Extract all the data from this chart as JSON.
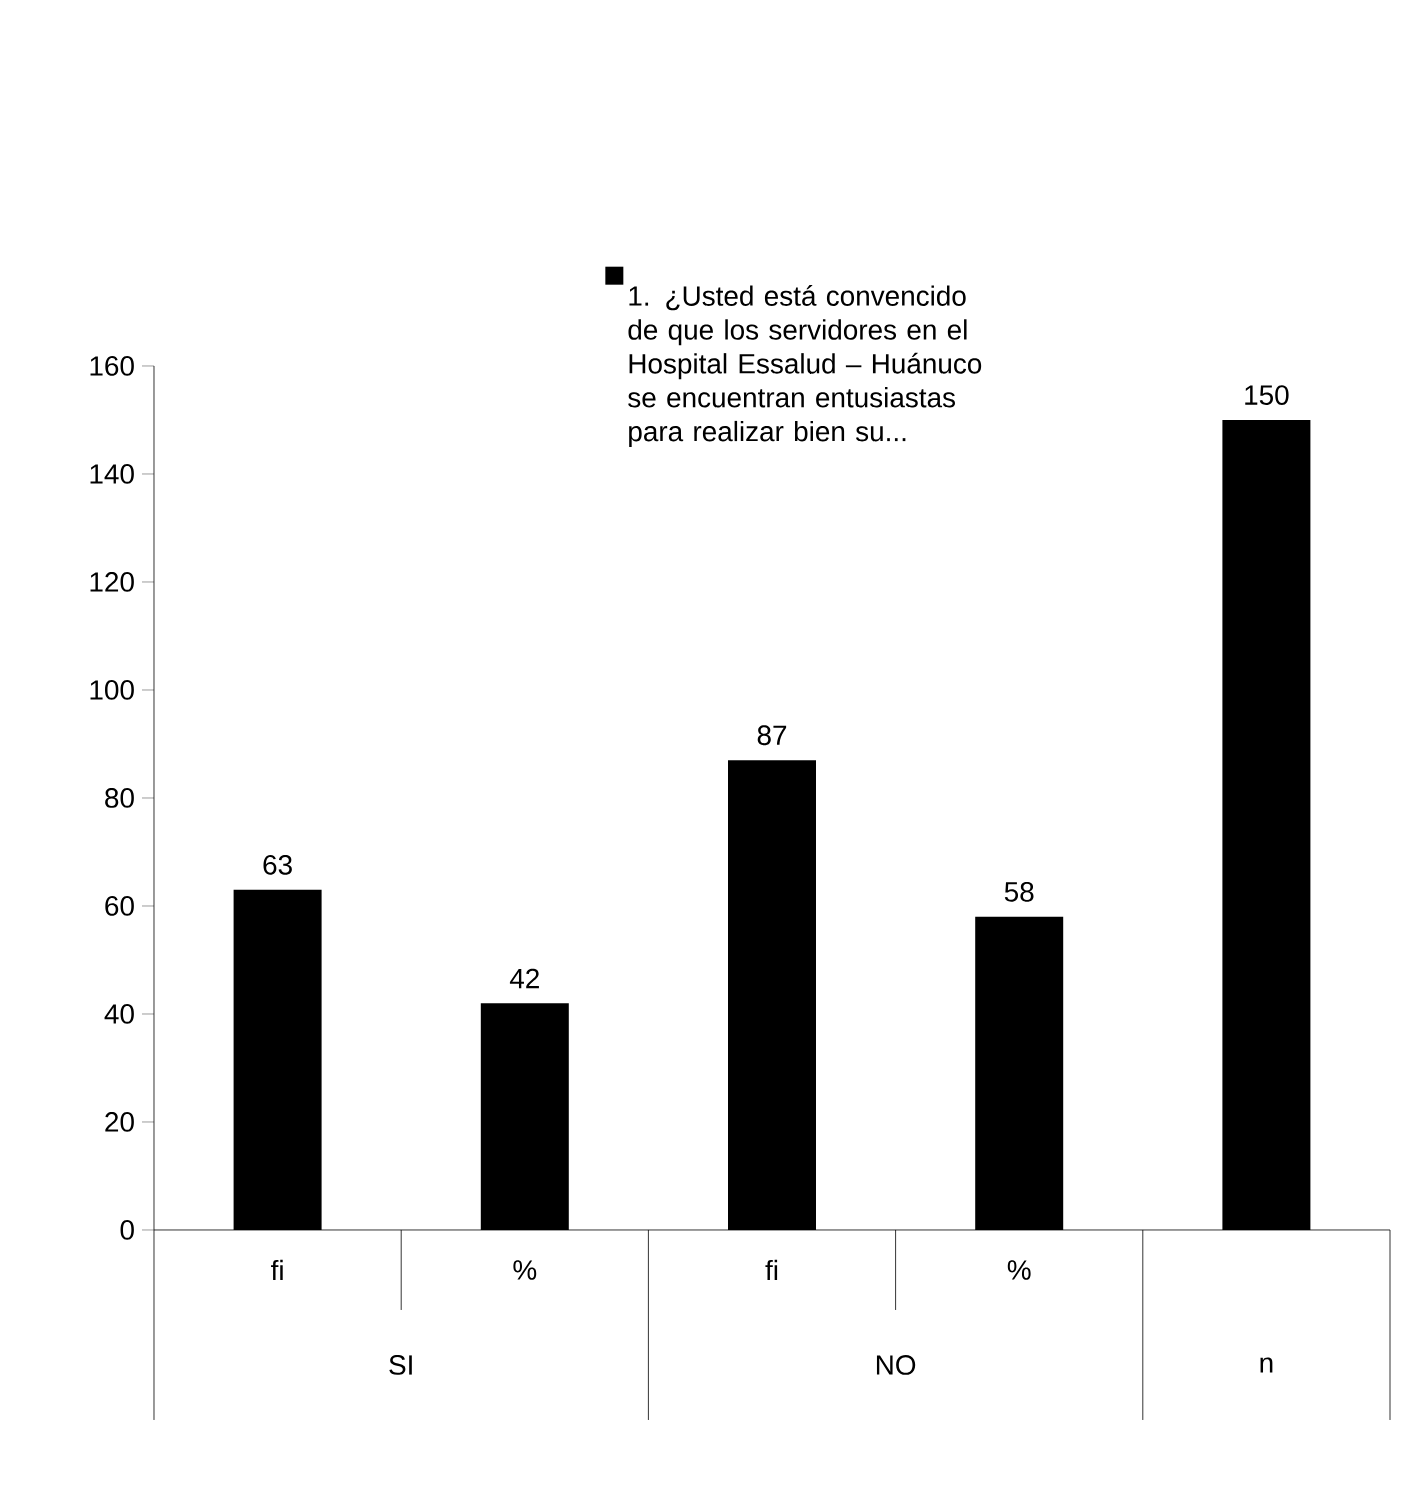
{
  "chart_data": {
    "type": "bar",
    "categories": [
      "fi",
      "%",
      "fi",
      "%",
      null
    ],
    "annotations": [
      "SI",
      "NO",
      "n"
    ],
    "series": [
      {
        "name": "1. ¿Usted está convencido de que los servidores en el Hospital Essalud – Huánuco se encuentran entusiastas para realizar bien su...",
        "color": "#000000",
        "values": [
          63,
          42,
          87,
          58,
          150
        ]
      }
    ],
    "ylim": [
      0,
      160
    ],
    "yticks": [
      0,
      20,
      40,
      60,
      80,
      100,
      120,
      140,
      160
    ],
    "data_labels": true,
    "legend": "top right",
    "grid": false
  }
}
